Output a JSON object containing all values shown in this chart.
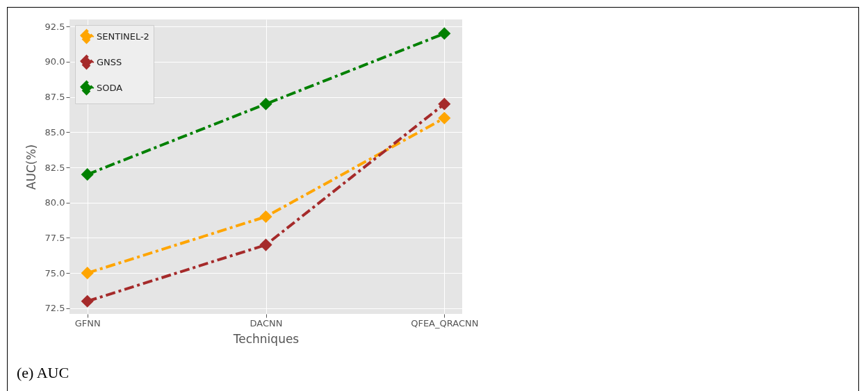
{
  "chart_data": {
    "type": "line",
    "xlabel": "Techniques",
    "ylabel": "AUC(%)",
    "categories": [
      "GFNN",
      "DACNN",
      "QFEA_QRACNN"
    ],
    "series": [
      {
        "name": "SENTINEL-2",
        "color": "#ffa500",
        "values": [
          75,
          79,
          86
        ]
      },
      {
        "name": "GNSS",
        "color": "#a52a2a",
        "values": [
          73,
          77,
          87
        ]
      },
      {
        "name": "SODA",
        "color": "#008000",
        "values": [
          82,
          87,
          92
        ]
      }
    ],
    "ylim": [
      72.1,
      93.0
    ],
    "yticks": [
      {
        "value": 72.5,
        "label": "72.5"
      },
      {
        "value": 75,
        "label": "75.0"
      },
      {
        "value": 77.5,
        "label": "77.5"
      },
      {
        "value": 80,
        "label": "80.0"
      },
      {
        "value": 82.5,
        "label": "82.5"
      },
      {
        "value": 85,
        "label": "85.0"
      },
      {
        "value": 87.5,
        "label": "87.5"
      },
      {
        "value": 90,
        "label": "90.0"
      },
      {
        "value": 92.5,
        "label": "92.5"
      }
    ],
    "grid": true,
    "legend": "top left",
    "marker": "diamond",
    "line_style": "dashed",
    "annotations": [
      "(e) AUC"
    ]
  }
}
